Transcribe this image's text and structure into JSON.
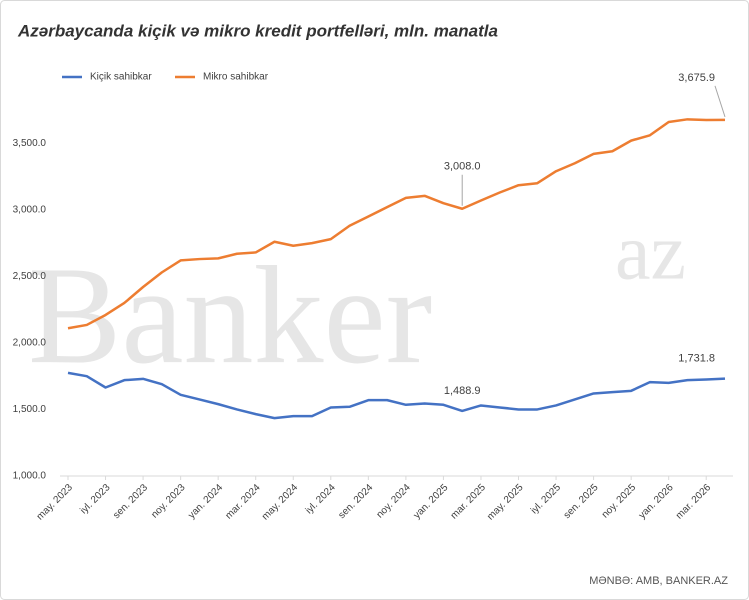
{
  "chart_data": {
    "type": "line",
    "title": "Azərbaycanda kiçik və mikro kredit portfelləri, mln. manatla",
    "source": "MƏNBƏ:  AMB,  BANKER.AZ",
    "watermark": {
      "main": "Banker",
      "sup": "az"
    },
    "categories": [
      "may. 2023",
      null,
      "iyl. 2023",
      null,
      "sen. 2023",
      null,
      "noy. 2023",
      null,
      "yan. 2024",
      null,
      "mar. 2024",
      null,
      "may. 2024",
      null,
      "iyl. 2024",
      null,
      "sen. 2024",
      null,
      "noy. 2024",
      null,
      "yan. 2025",
      null,
      "mar. 2025",
      null,
      "may. 2025",
      null,
      "iyl. 2025",
      null,
      "sen. 2025",
      null,
      "noy. 2025",
      null,
      "yan. 2026",
      null,
      "mar. 2026",
      null
    ],
    "series": [
      {
        "name": "Kiçik sahibkar",
        "color": "#4472c4",
        "values": [
          1775,
          1750,
          1665,
          1720,
          1730,
          1690,
          1610,
          1575,
          1540,
          1500,
          1465,
          1435,
          1450,
          1450,
          1515,
          1520,
          1570,
          1570,
          1535,
          1545,
          1535,
          1488.9,
          1530,
          1515,
          1500,
          1500,
          1530,
          1575,
          1620,
          1630,
          1640,
          1705,
          1700,
          1720,
          1725,
          1731.8
        ],
        "value_labels": [
          null,
          null,
          null,
          null,
          null,
          null,
          null,
          null,
          null,
          null,
          null,
          null,
          null,
          null,
          null,
          null,
          null,
          null,
          null,
          null,
          null,
          "1,488.9",
          null,
          null,
          null,
          null,
          null,
          null,
          null,
          null,
          null,
          null,
          null,
          null,
          null,
          "1,731.8"
        ]
      },
      {
        "name": "Mikro sahibkar",
        "color": "#ed7d31",
        "values": [
          2110,
          2135,
          2210,
          2300,
          2420,
          2530,
          2620,
          2630,
          2635,
          2670,
          2680,
          2760,
          2730,
          2750,
          2780,
          2880,
          2950,
          3020,
          3090,
          3105,
          3050,
          3008.0,
          3070,
          3130,
          3185,
          3200,
          3290,
          3350,
          3420,
          3440,
          3520,
          3560,
          3660,
          3680,
          3675,
          3675.9
        ],
        "value_labels": [
          null,
          null,
          null,
          null,
          null,
          null,
          null,
          null,
          null,
          null,
          null,
          null,
          null,
          null,
          null,
          null,
          null,
          null,
          null,
          null,
          null,
          "3,008.0",
          null,
          null,
          null,
          null,
          null,
          null,
          null,
          null,
          null,
          null,
          null,
          null,
          null,
          "3,675.9"
        ]
      }
    ],
    "ylim": [
      1000,
      3750
    ],
    "yticks": [
      {
        "value": 1000,
        "label": "1,000.0"
      },
      {
        "value": 1500,
        "label": "1,500.0"
      },
      {
        "value": 2000,
        "label": "2,000.0"
      },
      {
        "value": 2500,
        "label": "2,500.0"
      },
      {
        "value": 3000,
        "label": "3,000.0"
      },
      {
        "value": 3500,
        "label": "3,500.0"
      }
    ],
    "grid": false,
    "legend": "top-left"
  }
}
